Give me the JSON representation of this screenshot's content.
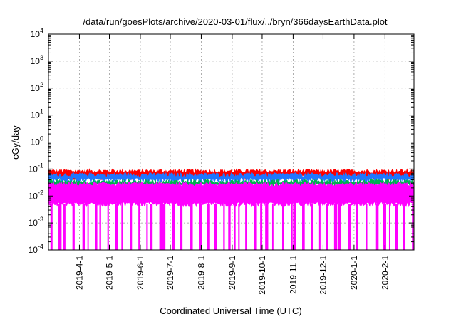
{
  "chart_data": {
    "type": "area",
    "title": "/data/run/goesPlots/archive/2020-03-01/flux/../bryn/366daysEarthData.plot",
    "xlabel": "Coordinated Universal Time (UTC)",
    "ylabel": "cGy/day",
    "y_scale": "log",
    "ylim": [
      0.0001,
      10000
    ],
    "xlim": [
      "2019-03-01",
      "2020-03-01"
    ],
    "grid": true,
    "legend": "none",
    "y_ticks": [
      {
        "value": 0.0001,
        "base": "10",
        "exp": "-4"
      },
      {
        "value": 0.001,
        "base": "10",
        "exp": "-3"
      },
      {
        "value": 0.01,
        "base": "10",
        "exp": "-2"
      },
      {
        "value": 0.1,
        "base": "10",
        "exp": "-1"
      },
      {
        "value": 1,
        "base": "10",
        "exp": "0"
      },
      {
        "value": 10,
        "base": "10",
        "exp": "1"
      },
      {
        "value": 100,
        "base": "10",
        "exp": "2"
      },
      {
        "value": 1000,
        "base": "10",
        "exp": "3"
      },
      {
        "value": 10000,
        "base": "10",
        "exp": "4"
      }
    ],
    "x_ticks": [
      {
        "label": "2019-4-1",
        "date": "2019-04-01"
      },
      {
        "label": "2019-5-1",
        "date": "2019-05-01"
      },
      {
        "label": "2019-6-1",
        "date": "2019-06-01"
      },
      {
        "label": "2019-7-1",
        "date": "2019-07-01"
      },
      {
        "label": "2019-8-1",
        "date": "2019-08-01"
      },
      {
        "label": "2019-9-1",
        "date": "2019-09-01"
      },
      {
        "label": "2019-10-1",
        "date": "2019-10-01"
      },
      {
        "label": "2019-11-1",
        "date": "2019-11-01"
      },
      {
        "label": "2019-12-1",
        "date": "2019-12-01"
      },
      {
        "label": "2020-1-1",
        "date": "2020-01-01"
      },
      {
        "label": "2020-2-1",
        "date": "2020-02-01"
      }
    ],
    "series": [
      {
        "color": "#ff0000",
        "typical_upper": 0.085,
        "typical_lower": 0.05
      },
      {
        "color": "#1f77ff",
        "typical_upper": 0.062,
        "typical_lower": 0.04
      },
      {
        "color": "#00b050",
        "typical_upper": 0.035,
        "typical_lower": 0.025
      },
      {
        "color": "#ff00ff",
        "typical_upper": 0.028,
        "typical_lower": 0.005,
        "dropouts_to": 0.0001
      }
    ],
    "dropout_dates": [
      "2019-03-03",
      "2019-03-11",
      "2019-03-16",
      "2019-03-25",
      "2019-04-04",
      "2019-04-09",
      "2019-04-17",
      "2019-04-21",
      "2019-04-29",
      "2019-05-07",
      "2019-05-13",
      "2019-05-22",
      "2019-05-30",
      "2019-06-07",
      "2019-06-11",
      "2019-06-20",
      "2019-06-23",
      "2019-07-03",
      "2019-07-11",
      "2019-07-21",
      "2019-07-30",
      "2019-08-07",
      "2019-08-14",
      "2019-08-23",
      "2019-08-28",
      "2019-09-03",
      "2019-09-07",
      "2019-09-14",
      "2019-09-23",
      "2019-09-29",
      "2019-10-04",
      "2019-10-11",
      "2019-10-21",
      "2019-10-30",
      "2019-11-01",
      "2019-11-10",
      "2019-11-19",
      "2019-11-27",
      "2019-12-04",
      "2019-12-12",
      "2019-12-16",
      "2019-12-26",
      "2020-01-03",
      "2020-01-13",
      "2020-01-23",
      "2020-01-30",
      "2020-02-05",
      "2020-02-11",
      "2020-02-19",
      "2020-02-28"
    ]
  }
}
